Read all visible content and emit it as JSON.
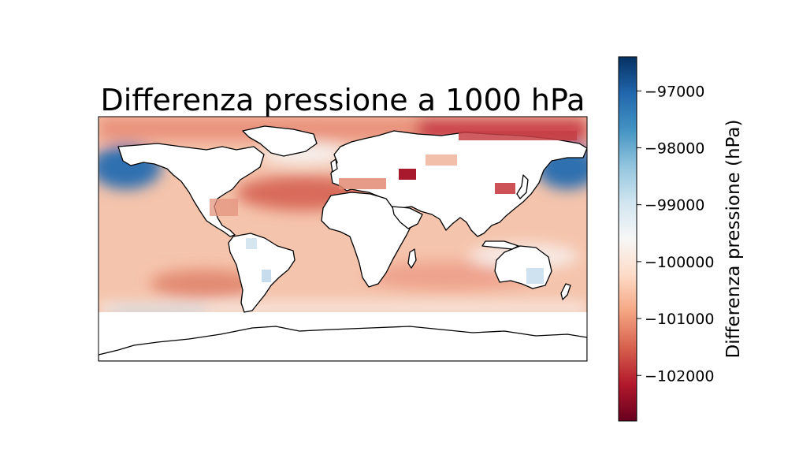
{
  "title": "Differenza pressione a 1000 hPa",
  "colorbar": {
    "label": "Differenza pressione (hPa)",
    "colormap": "RdBu",
    "vmin": -102800,
    "vmax": -96400,
    "ticks": [
      -97000,
      -98000,
      -99000,
      -100000,
      -101000,
      -102000
    ],
    "tick_labels": [
      "−97000",
      "−98000",
      "−99000",
      "−100000",
      "−101000",
      "−102000"
    ],
    "stops": [
      "#67001f",
      "#b2182b",
      "#d6604d",
      "#f4a582",
      "#fddbc7",
      "#f7f7f7",
      "#d1e5f0",
      "#92c5de",
      "#4393c3",
      "#2166ac",
      "#053061"
    ]
  },
  "map": {
    "projection": "PlateCarree",
    "extent": [
      -180,
      180,
      -90,
      90
    ],
    "land_fill": "#ffffff",
    "coastline_color": "#000000"
  }
}
